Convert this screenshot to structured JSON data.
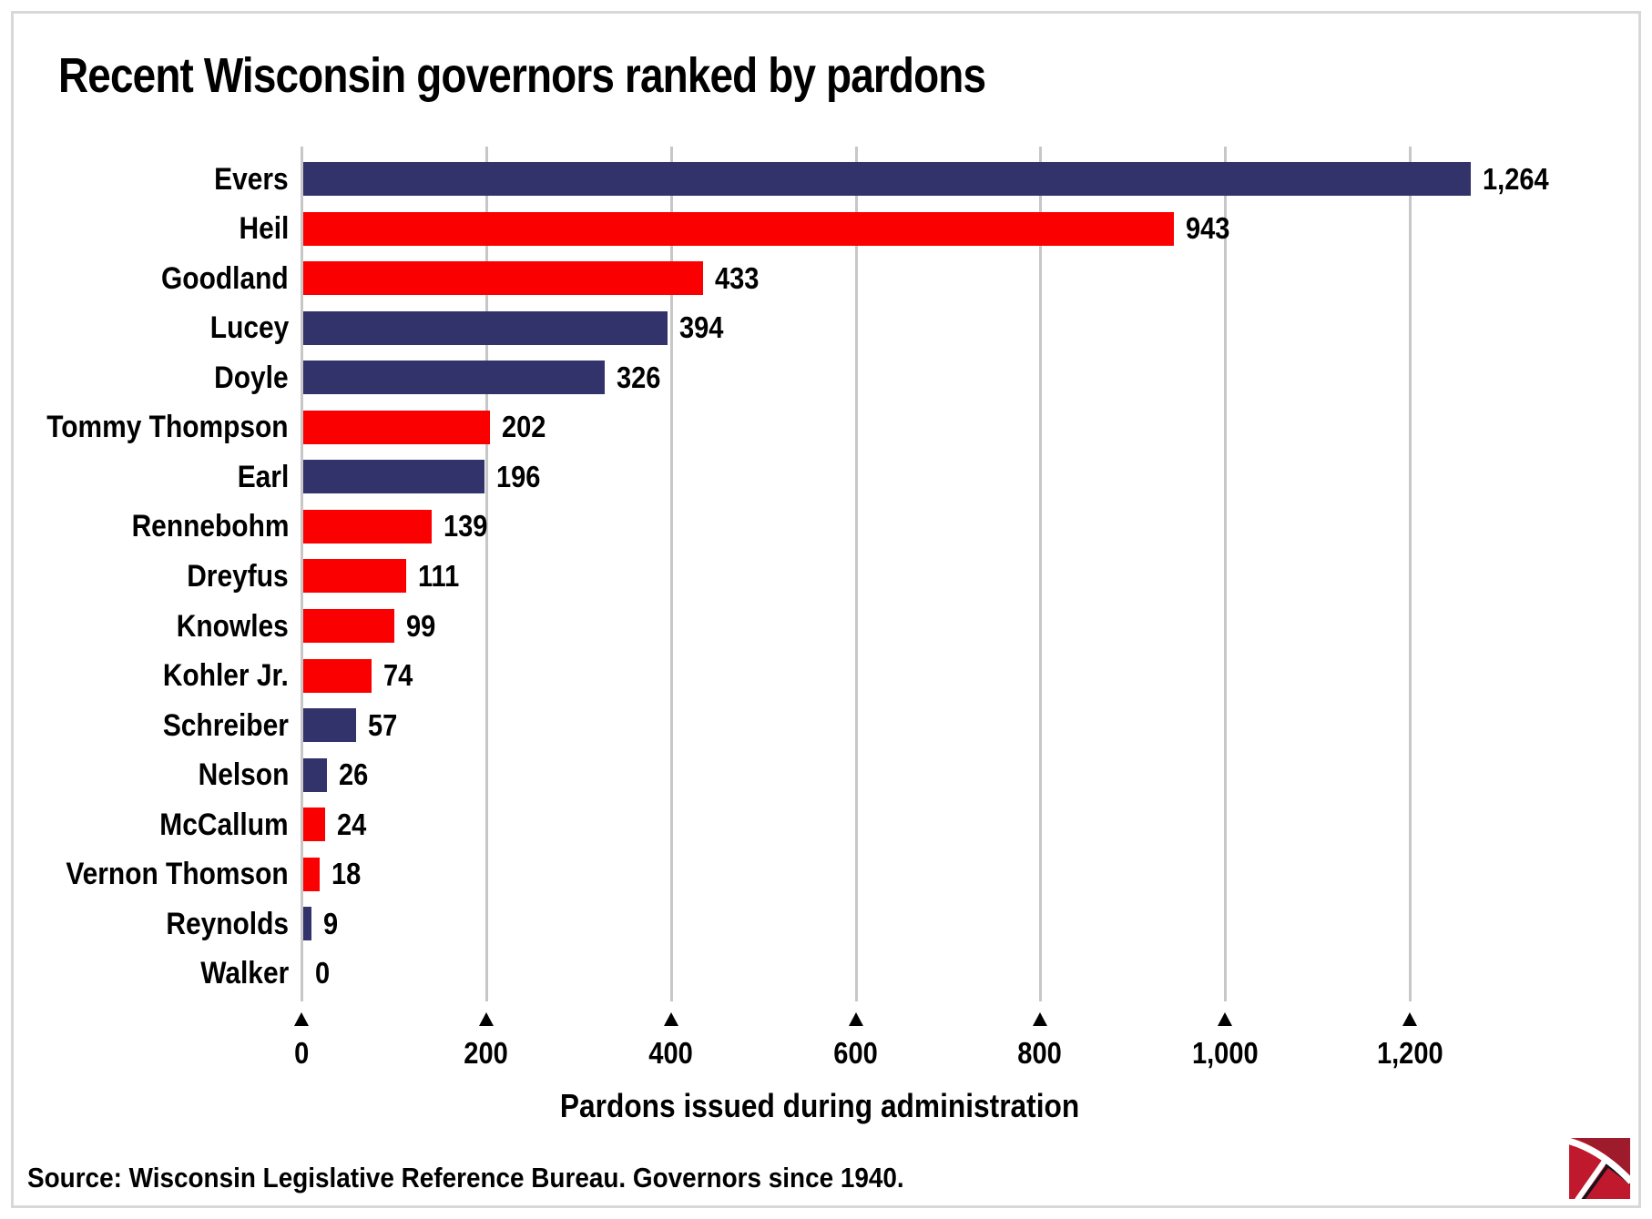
{
  "chart_data": {
    "type": "bar",
    "orientation": "horizontal",
    "title": "Recent Wisconsin governors ranked by pardons",
    "xlabel": "Pardons issued during administration",
    "xlim": [
      0,
      1200
    ],
    "x_ticks": [
      0,
      200,
      400,
      600,
      800,
      1000,
      1200
    ],
    "x_tick_labels": [
      "0",
      "200",
      "400",
      "600",
      "800",
      "1,000",
      "1,200"
    ],
    "grid": true,
    "tick_marker": "triangle-up",
    "rows": [
      {
        "label": "Evers",
        "value": 1264,
        "display": "1,264",
        "color": "navy"
      },
      {
        "label": "Heil",
        "value": 943,
        "display": "943",
        "color": "red"
      },
      {
        "label": "Goodland",
        "value": 433,
        "display": "433",
        "color": "red"
      },
      {
        "label": "Lucey",
        "value": 394,
        "display": "394",
        "color": "navy"
      },
      {
        "label": "Doyle",
        "value": 326,
        "display": "326",
        "color": "navy"
      },
      {
        "label": "Tommy Thompson",
        "value": 202,
        "display": "202",
        "color": "red"
      },
      {
        "label": "Earl",
        "value": 196,
        "display": "196",
        "color": "navy"
      },
      {
        "label": "Rennebohm",
        "value": 139,
        "display": "139",
        "color": "red"
      },
      {
        "label": "Dreyfus",
        "value": 111,
        "display": "111",
        "color": "red"
      },
      {
        "label": "Knowles",
        "value": 99,
        "display": "99",
        "color": "red"
      },
      {
        "label": "Kohler Jr.",
        "value": 74,
        "display": "74",
        "color": "red"
      },
      {
        "label": "Schreiber",
        "value": 57,
        "display": "57",
        "color": "navy"
      },
      {
        "label": "Nelson",
        "value": 26,
        "display": "26",
        "color": "navy"
      },
      {
        "label": "McCallum",
        "value": 24,
        "display": "24",
        "color": "red"
      },
      {
        "label": "Vernon Thomson",
        "value": 18,
        "display": "18",
        "color": "red"
      },
      {
        "label": "Reynolds",
        "value": 9,
        "display": "9",
        "color": "navy"
      },
      {
        "label": "Walker",
        "value": 0,
        "display": "0",
        "color": "navy"
      }
    ]
  },
  "colors": {
    "navy": "#31336a",
    "red": "#fb0000",
    "grid": "#c7c7c7",
    "border": "#d8d8d8",
    "text": "#000000",
    "logo_red": "#c0182c",
    "logo_dark_red": "#9d1b2b"
  },
  "footer": {
    "source": "Source: Wisconsin Legislative Reference Bureau. Governors since 1940.",
    "logo": "journal-sentinel-pickaxe-logo"
  }
}
